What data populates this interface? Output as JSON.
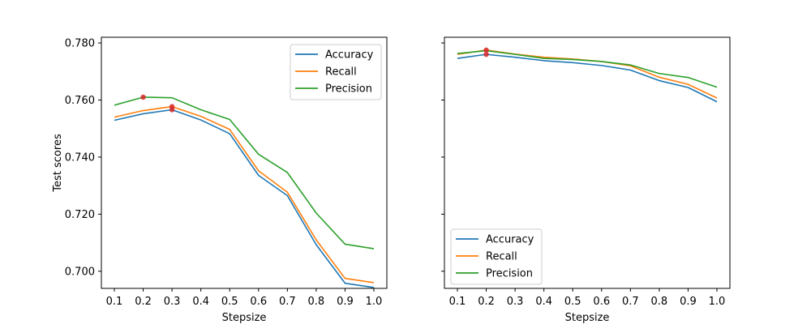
{
  "chart_data": [
    {
      "type": "line",
      "xlabel": "Stepsize",
      "ylabel": "Test scores",
      "x": [
        0.1,
        0.2,
        0.3,
        0.4,
        0.5,
        0.6,
        0.7,
        0.8,
        0.9,
        1.0
      ],
      "x_tick_labels": [
        "0.1",
        "0.2",
        "0.3",
        "0.4",
        "0.5",
        "0.6",
        "0.7",
        "0.8",
        "0.9",
        "1.0"
      ],
      "ylim": [
        0.694,
        0.782
      ],
      "y_ticks": [
        0.7,
        0.72,
        0.74,
        0.76,
        0.78
      ],
      "y_tick_labels": [
        "0.700",
        "0.720",
        "0.740",
        "0.760",
        "0.780"
      ],
      "legend_position": "top-right",
      "series": [
        {
          "name": "Accuracy",
          "color": "#1f77b4",
          "values": [
            0.7529,
            0.7552,
            0.7566,
            0.753,
            0.7482,
            0.7336,
            0.7265,
            0.7093,
            0.6958,
            0.6943
          ]
        },
        {
          "name": "Recall",
          "color": "#ff7f0e",
          "values": [
            0.754,
            0.7563,
            0.7577,
            0.7543,
            0.7497,
            0.7352,
            0.7277,
            0.711,
            0.6975,
            0.696
          ]
        },
        {
          "name": "Precision",
          "color": "#2ca02c",
          "values": [
            0.7582,
            0.761,
            0.7608,
            0.7566,
            0.7532,
            0.741,
            0.7346,
            0.7204,
            0.7095,
            0.7079
          ]
        }
      ],
      "markers": [
        {
          "x": 0.2,
          "y": 0.761,
          "color": "#d62728"
        },
        {
          "x": 0.3,
          "y": 0.7577,
          "color": "#d62728"
        },
        {
          "x": 0.3,
          "y": 0.7566,
          "color": "#d62728"
        }
      ]
    },
    {
      "type": "line",
      "xlabel": "Stepsize",
      "ylabel": "",
      "x": [
        0.1,
        0.2,
        0.3,
        0.4,
        0.5,
        0.6,
        0.7,
        0.8,
        0.9,
        1.0
      ],
      "x_tick_labels": [
        "0.1",
        "0.2",
        "0.3",
        "0.4",
        "0.5",
        "0.6",
        "0.7",
        "0.8",
        "0.9",
        "1.0"
      ],
      "ylim": [
        0.694,
        0.782
      ],
      "y_ticks": [
        0.7,
        0.72,
        0.74,
        0.76,
        0.78
      ],
      "y_tick_labels": [],
      "legend_position": "bottom-left",
      "series": [
        {
          "name": "Accuracy",
          "color": "#1f77b4",
          "values": [
            0.7746,
            0.776,
            0.775,
            0.7738,
            0.7731,
            0.7721,
            0.7705,
            0.7668,
            0.7644,
            0.7594
          ]
        },
        {
          "name": "Recall",
          "color": "#ff7f0e",
          "values": [
            0.776,
            0.7775,
            0.7761,
            0.775,
            0.7744,
            0.7735,
            0.772,
            0.768,
            0.7655,
            0.7607
          ]
        },
        {
          "name": "Precision",
          "color": "#2ca02c",
          "values": [
            0.7763,
            0.7773,
            0.776,
            0.7746,
            0.7742,
            0.7735,
            0.7723,
            0.7693,
            0.7679,
            0.7645
          ]
        }
      ],
      "markers": [
        {
          "x": 0.2,
          "y": 0.7775,
          "color": "#d62728"
        },
        {
          "x": 0.2,
          "y": 0.776,
          "color": "#d62728"
        }
      ]
    }
  ]
}
